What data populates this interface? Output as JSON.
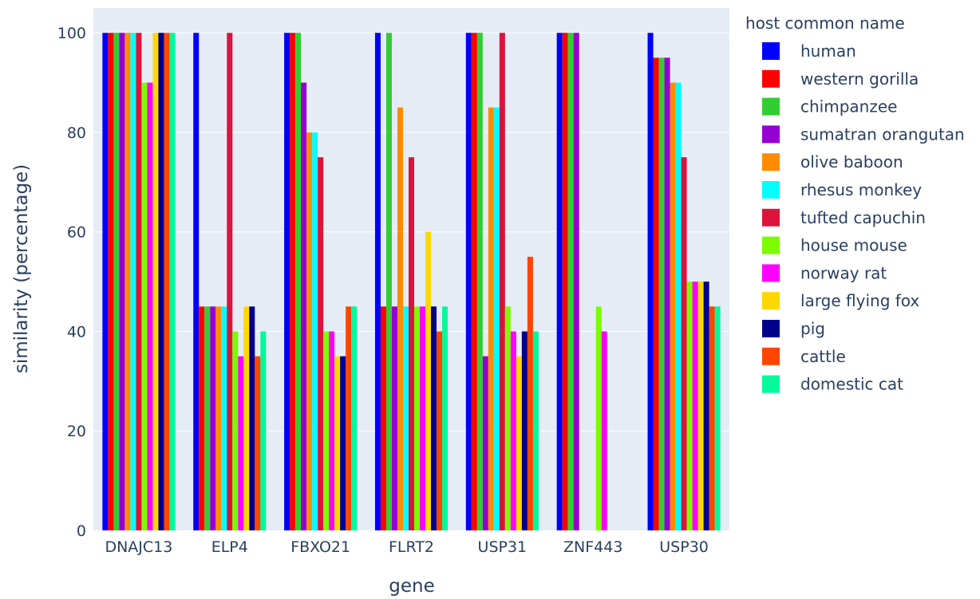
{
  "chart_data": {
    "type": "bar",
    "title": "",
    "xlabel": "gene",
    "ylabel": "similarity (percentage)",
    "ylim": [
      0,
      105
    ],
    "yticks": [
      0,
      20,
      40,
      60,
      80,
      100
    ],
    "grid": true,
    "legend_title": "host common name",
    "legend_position": "right",
    "categories": [
      "DNAJC13",
      "ELP4",
      "FBXO21",
      "FLRT2",
      "USP31",
      "ZNF443",
      "USP30"
    ],
    "series": [
      {
        "name": "human",
        "color": "#0000ff",
        "values": [
          100,
          100,
          100,
          100,
          100,
          100,
          100
        ]
      },
      {
        "name": "western gorilla",
        "color": "#ff0000",
        "values": [
          100,
          45,
          100,
          45,
          100,
          100,
          95
        ]
      },
      {
        "name": "chimpanzee",
        "color": "#32cd32",
        "values": [
          100,
          45,
          100,
          100,
          100,
          100,
          95
        ]
      },
      {
        "name": "sumatran orangutan",
        "color": "#9400d3",
        "values": [
          100,
          45,
          90,
          45,
          35,
          100,
          95
        ]
      },
      {
        "name": "olive baboon",
        "color": "#ff8c00",
        "values": [
          100,
          45,
          80,
          85,
          85,
          null,
          90
        ]
      },
      {
        "name": "rhesus monkey",
        "color": "#00ffff",
        "values": [
          100,
          45,
          80,
          45,
          85,
          null,
          90
        ]
      },
      {
        "name": "tufted capuchin",
        "color": "#dc143c",
        "values": [
          100,
          100,
          75,
          75,
          100,
          null,
          75
        ]
      },
      {
        "name": "house mouse",
        "color": "#7cfc00",
        "values": [
          90,
          40,
          40,
          45,
          45,
          45,
          50
        ]
      },
      {
        "name": "norway rat",
        "color": "#ff00ff",
        "values": [
          90,
          35,
          40,
          45,
          40,
          40,
          50
        ]
      },
      {
        "name": "large flying fox",
        "color": "#ffd700",
        "values": [
          100,
          45,
          35,
          60,
          35,
          null,
          50
        ]
      },
      {
        "name": "pig",
        "color": "#00008b",
        "values": [
          100,
          45,
          35,
          45,
          40,
          null,
          50
        ]
      },
      {
        "name": "cattle",
        "color": "#ff4500",
        "values": [
          100,
          35,
          45,
          40,
          55,
          null,
          45
        ]
      },
      {
        "name": "domestic cat",
        "color": "#00fa9a",
        "values": [
          100,
          40,
          45,
          45,
          40,
          null,
          45
        ]
      }
    ]
  }
}
